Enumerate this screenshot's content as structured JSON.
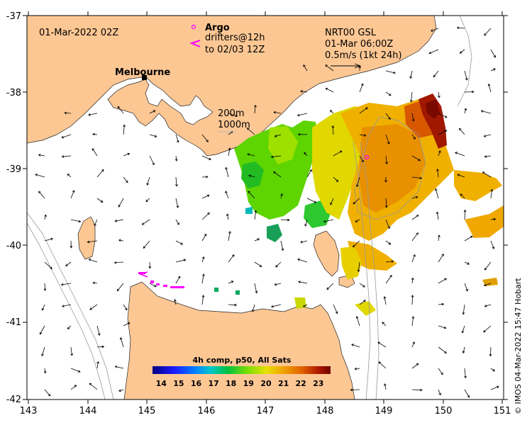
{
  "map": {
    "date_label": "01-Mar-2022 02Z",
    "city": "Melbourne",
    "argo_label": "Argo",
    "drifter_label_1": "drifters@12h",
    "drifter_label_2": "to 02/03 12Z",
    "product_label": "NRT00 GSL",
    "product_time": "01-Mar 06:00Z",
    "velocity_scale": "0.5m/s (1kt 24h)",
    "isobath_200": "200m",
    "isobath_1000": "1000m",
    "credit": "© IMOS 04-Mar-2022 15:47 Hobart",
    "lon_ticks": [
      "143",
      "144",
      "145",
      "146",
      "147",
      "148",
      "149",
      "150",
      "151"
    ],
    "lat_ticks": [
      "-37",
      "-38",
      "-39",
      "-40",
      "-41",
      "-42"
    ],
    "colorbar": {
      "title": "4h comp, p50, All Sats",
      "ticks": [
        "14",
        "15",
        "16",
        "17",
        "18",
        "19",
        "20",
        "21",
        "22",
        "23"
      ],
      "range": [
        13.5,
        23.7
      ]
    },
    "colors": {
      "land": "#fdc794",
      "sea": "#ffffff",
      "argo": "#ff00ff"
    }
  }
}
